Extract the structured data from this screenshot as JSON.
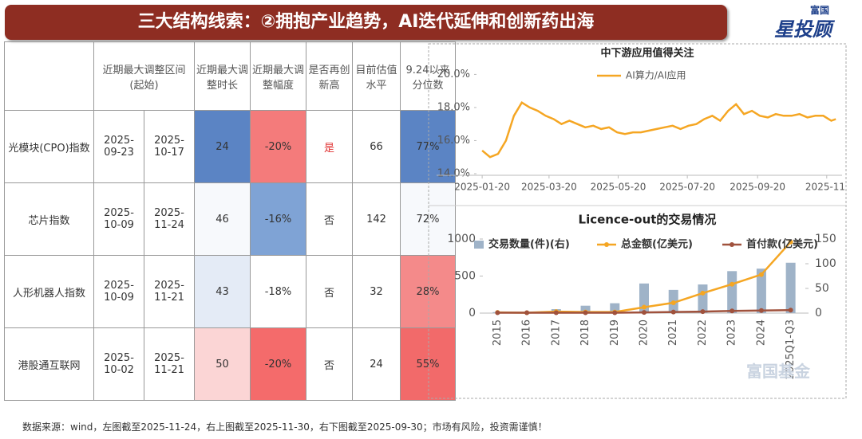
{
  "header": {
    "title": "三大结构线索：②拥抱产业趋势，AI迭代延伸和创新药出海",
    "logo_top": "富国",
    "logo_main": "星投顾",
    "watermark": "富国基金"
  },
  "table": {
    "header": [
      "近期最大调整区间(起始)",
      "近期最大调整时长",
      "近期最大调整幅度",
      "是否再创新高",
      "目前估值水平",
      "9.24以来分位数"
    ],
    "rows": [
      [
        "光模块(CPO)指数",
        "2025-09-23",
        "2025-10-17",
        "24",
        "-20%",
        "是",
        "66",
        "77%"
      ],
      [
        "芯片指数",
        "2025-10-09",
        "2025-11-24",
        "46",
        "-16%",
        "否",
        "142",
        "72%"
      ],
      [
        "人形机器人指数",
        "2025-10-09",
        "2025-11-21",
        "43",
        "-18%",
        "否",
        "32",
        "28%"
      ],
      [
        "港股通互联网",
        "2025-10-02",
        "2025-11-21",
        "50",
        "-20%",
        "否",
        "24",
        "55%"
      ]
    ],
    "cell_colors": [
      [
        "#ffffff",
        "#ffffff",
        "#ffffff",
        "#5b84c4",
        "#f47b7b",
        "#ffffff",
        "#ffffff",
        "#5b84c4"
      ],
      [
        "#ffffff",
        "#ffffff",
        "#ffffff",
        "#f7f9fc",
        "#7fa3d5",
        "#ffffff",
        "#ffffff",
        "#f7f9fc"
      ],
      [
        "#ffffff",
        "#ffffff",
        "#ffffff",
        "#e4ebf6",
        "#ffffff",
        "#ffffff",
        "#ffffff",
        "#f48a8a"
      ],
      [
        "#ffffff",
        "#ffffff",
        "#ffffff",
        "#fbd5d5",
        "#f46b6b",
        "#ffffff",
        "#ffffff",
        "#f26a6a"
      ]
    ],
    "highlight_text": [
      [
        "#333333",
        "#333333",
        "#333333",
        "#333333",
        "#333333",
        "#e03030",
        "#333333",
        "#333333"
      ],
      [
        "#333333",
        "#333333",
        "#333333",
        "#333333",
        "#333333",
        "#333333",
        "#333333",
        "#333333"
      ],
      [
        "#333333",
        "#333333",
        "#333333",
        "#333333",
        "#333333",
        "#333333",
        "#333333",
        "#333333"
      ],
      [
        "#333333",
        "#333333",
        "#333333",
        "#333333",
        "#333333",
        "#333333",
        "#333333",
        "#333333"
      ]
    ]
  },
  "chart_data": [
    {
      "type": "line",
      "title": "中下游应用值得关注",
      "x": [
        "2025-01-20",
        "2025-01-27",
        "2025-02-03",
        "2025-02-10",
        "2025-02-17",
        "2025-02-24",
        "2025-03-03",
        "2025-03-10",
        "2025-03-17",
        "2025-03-24",
        "2025-03-31",
        "2025-04-07",
        "2025-04-14",
        "2025-04-21",
        "2025-04-28",
        "2025-05-05",
        "2025-05-12",
        "2025-05-19",
        "2025-05-26",
        "2025-06-02",
        "2025-06-09",
        "2025-06-16",
        "2025-06-23",
        "2025-06-30",
        "2025-07-07",
        "2025-07-14",
        "2025-07-21",
        "2025-07-28",
        "2025-08-04",
        "2025-08-11",
        "2025-08-18",
        "2025-08-25",
        "2025-09-01",
        "2025-09-08",
        "2025-09-15",
        "2025-09-22",
        "2025-09-29",
        "2025-10-06",
        "2025-10-13",
        "2025-10-20",
        "2025-10-27",
        "2025-11-03",
        "2025-11-10",
        "2025-11-17",
        "2025-11-24",
        "2025-11-28"
      ],
      "series": [
        {
          "name": "AI算力/AI应用",
          "color": "#f5a623",
          "values": [
            15.4,
            15.0,
            15.2,
            16.0,
            17.5,
            18.3,
            18.0,
            17.8,
            17.5,
            17.3,
            17.0,
            17.2,
            17.0,
            16.8,
            16.9,
            16.7,
            16.8,
            16.5,
            16.4,
            16.5,
            16.5,
            16.6,
            16.7,
            16.8,
            16.9,
            16.7,
            16.9,
            17.0,
            17.3,
            17.5,
            17.2,
            17.8,
            18.2,
            17.6,
            17.8,
            17.5,
            17.4,
            17.6,
            17.5,
            17.5,
            17.6,
            17.4,
            17.5,
            17.5,
            17.2,
            17.3
          ]
        }
      ],
      "xlim": [
        "2025-01-15",
        "2025-11-30"
      ],
      "xticks": [
        "2025-01-20",
        "2025-03-20",
        "2025-05-20",
        "2025-07-20",
        "2025-09-20",
        {
          "value": "2025-11-20",
          "label": "2025-11"
        }
      ],
      "ylim": [
        14,
        20.5
      ],
      "yticks": [
        {
          "value": 14,
          "label": "14.0%"
        },
        {
          "value": 16,
          "label": "16.0%"
        },
        {
          "value": 18,
          "label": "18.0%"
        },
        {
          "value": 20,
          "label": "20.0%"
        }
      ]
    },
    {
      "type": "bar-line",
      "title": "Licence-out的交易情况",
      "categories": [
        "2015",
        "2016",
        "2017",
        "2018",
        "2019",
        "2020",
        "2021",
        "2022",
        "2023",
        "2024",
        "2025Q1-Q3"
      ],
      "series": [
        {
          "name": "交易数量(件)(右)",
          "color": "#9fb3c8",
          "kind": "bar",
          "axis": "y2",
          "values": [
            2,
            1,
            8,
            15,
            20,
            60,
            47,
            58,
            85,
            90,
            102
          ]
        },
        {
          "name": "总金额(亿美元)",
          "color": "#f5a623",
          "kind": "line",
          "values": [
            10,
            5,
            20,
            15,
            15,
            80,
            140,
            270,
            390,
            520,
            960
          ]
        },
        {
          "name": "首付款(亿美元)",
          "color": "#a0523d",
          "kind": "line",
          "values": [
            5,
            5,
            5,
            5,
            5,
            10,
            15,
            20,
            30,
            35,
            40
          ]
        }
      ],
      "ylim": [
        0,
        1000
      ],
      "yticks": [
        0,
        500,
        1000
      ],
      "y2lim": [
        0,
        150
      ],
      "y2ticks": [
        0,
        50,
        100,
        150
      ]
    }
  ],
  "footer": "数据来源：wind，左图截至2025-11-24，右上图截至2025-11-30，右下图截至2025-09-30；市场有风险，投资需谨慎！"
}
